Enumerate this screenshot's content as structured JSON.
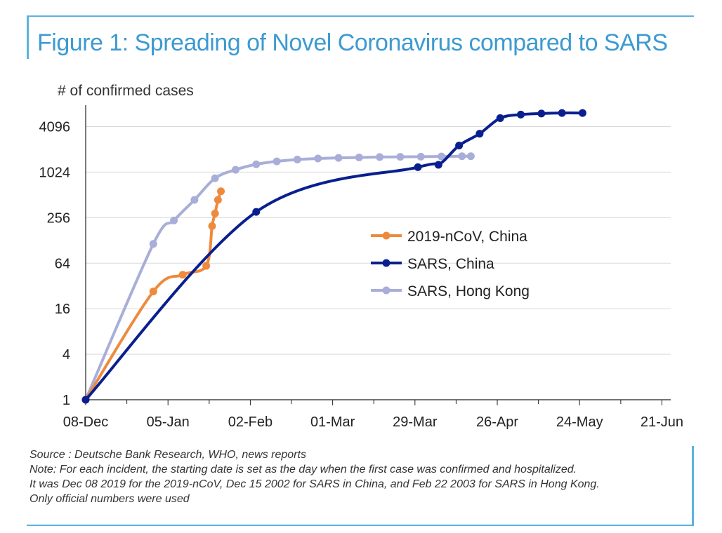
{
  "figure_title": "Figure 1: Spreading of Novel Coronavirus compared to SARS",
  "chart_data": {
    "type": "line",
    "title": "Figure 1: Spreading of Novel Coronavirus compared to SARS",
    "ylabel": "# of confirmed cases",
    "xlabel": "",
    "y_scale": "log2",
    "ylim": [
      1,
      8192
    ],
    "y_ticks": [
      1,
      4,
      16,
      64,
      256,
      1024,
      4096
    ],
    "y_tick_labels": [
      "1",
      "4",
      "16",
      "64",
      "256",
      "1024",
      "4096"
    ],
    "x_unit": "days since first case",
    "xlim": [
      0,
      199
    ],
    "x_ticks": [
      0,
      28,
      56,
      84,
      112,
      140,
      168,
      196
    ],
    "x_tick_labels": [
      "08-Dec",
      "05-Jan",
      "02-Feb",
      "01-Mar",
      "29-Mar",
      "26-Apr",
      "24-May",
      "21-Jun"
    ],
    "grid": true,
    "legend_position": "center-right",
    "series": [
      {
        "name": "2019-nCoV, China",
        "color": "#ee8a3e",
        "x": [
          0,
          23,
          33,
          41,
          43,
          44,
          45,
          46
        ],
        "values": [
          1,
          27,
          45,
          59,
          198,
          291,
          440,
          571
        ]
      },
      {
        "name": "SARS, China",
        "color": "#0a1f8f",
        "x": [
          0,
          58,
          113,
          120,
          127,
          134,
          141,
          148,
          155,
          162,
          169
        ],
        "values": [
          1,
          305,
          1190,
          1280,
          2300,
          3300,
          5300,
          5900,
          6100,
          6200,
          6200
        ]
      },
      {
        "name": "SARS, Hong Kong",
        "color": "#a9aed8",
        "x": [
          0,
          23,
          30,
          37,
          44,
          51,
          58,
          65,
          72,
          79,
          86,
          93,
          100,
          107,
          114,
          121,
          128,
          131
        ],
        "values": [
          1,
          115,
          235,
          440,
          850,
          1100,
          1300,
          1420,
          1500,
          1550,
          1580,
          1600,
          1620,
          1630,
          1640,
          1650,
          1660,
          1660
        ]
      }
    ]
  },
  "notes": {
    "source": "Source : Deutsche Bank Research, WHO, news reports",
    "line1": "Note: For each incident, the starting date is set as the day when the first case was confirmed and hospitalized.",
    "line2": "It was Dec 08 2019 for the 2019-nCoV, Dec 15 2002 for SARS in China, and Feb 22 2003 for SARS in Hong Kong.",
    "line3": "Only official numbers were used"
  }
}
